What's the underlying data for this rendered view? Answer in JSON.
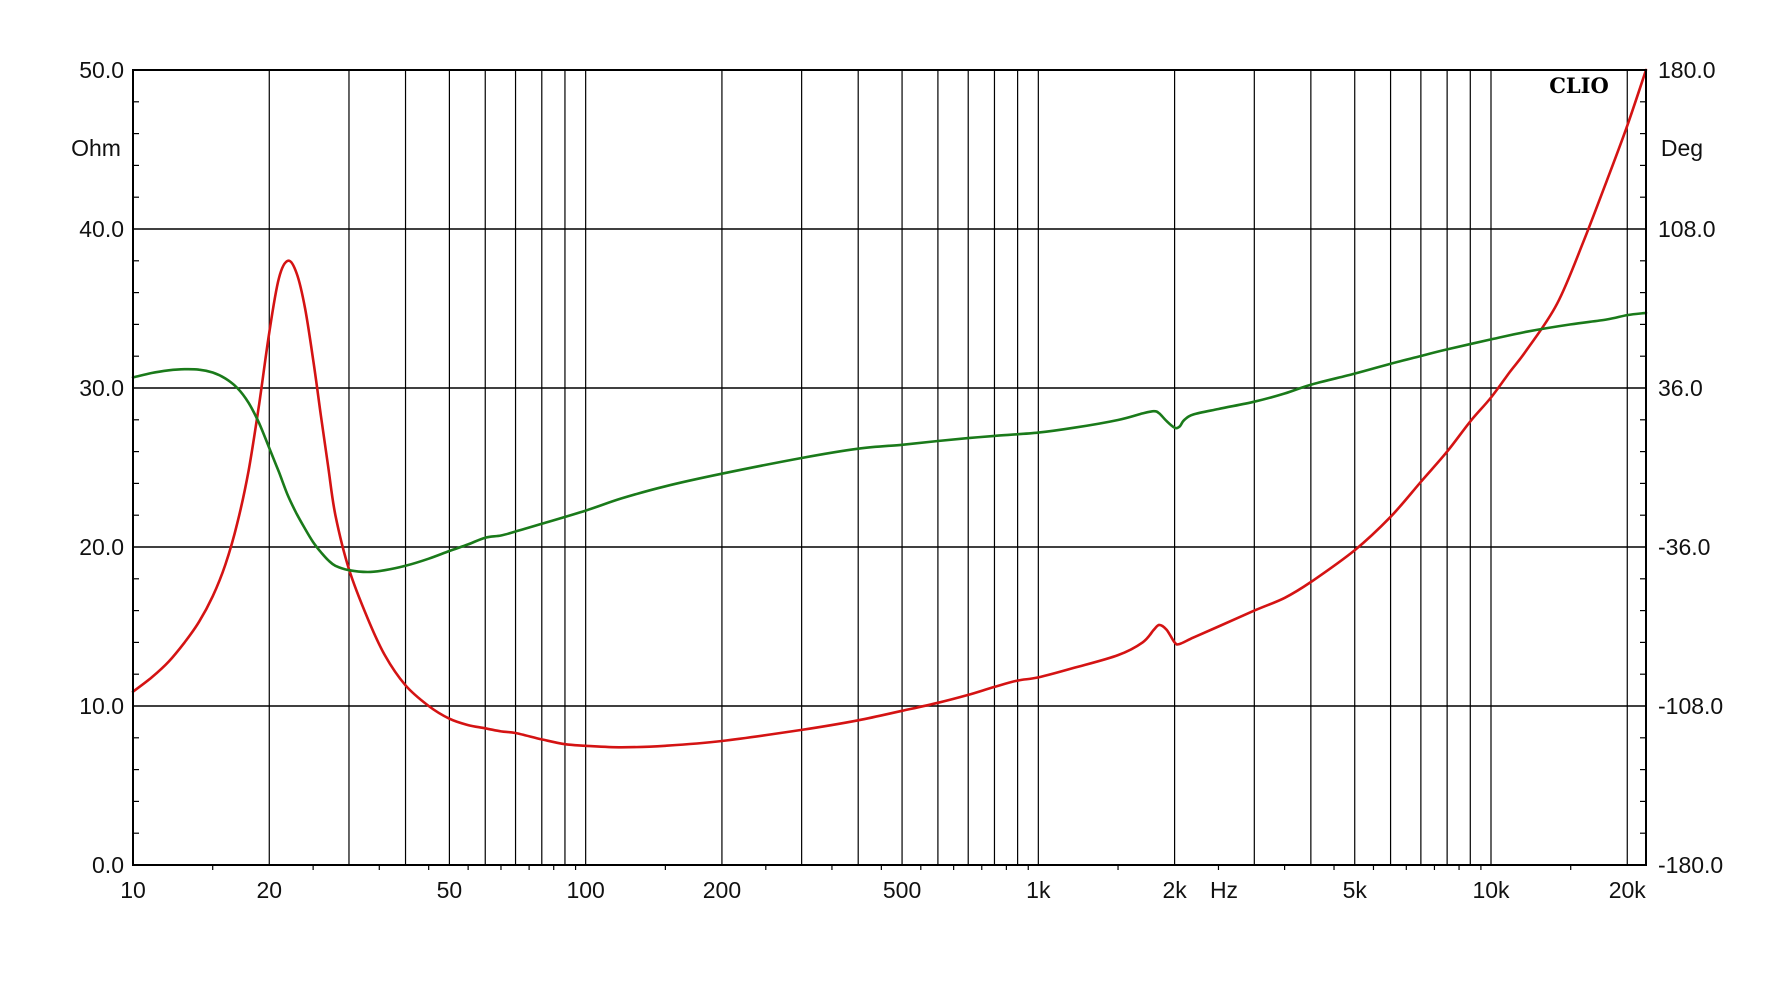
{
  "chart_data": {
    "type": "line",
    "title": "",
    "brand": "CLIO",
    "x_unit": "Hz",
    "y_left_unit": "Ohm",
    "y_right_unit": "Deg",
    "x_scale": "log",
    "xlim": [
      10,
      22000
    ],
    "ylim_left": [
      0,
      50
    ],
    "ylim_right": [
      -180,
      180
    ],
    "grid": true,
    "x_ticks": [
      {
        "value": 10,
        "label": "10"
      },
      {
        "value": 20,
        "label": "20"
      },
      {
        "value": 50,
        "label": "50"
      },
      {
        "value": 100,
        "label": "100"
      },
      {
        "value": 200,
        "label": "200"
      },
      {
        "value": 500,
        "label": "500"
      },
      {
        "value": 1000,
        "label": "1k"
      },
      {
        "value": 2000,
        "label": "2k"
      },
      {
        "value": 5000,
        "label": "5k"
      },
      {
        "value": 10000,
        "label": "10k"
      },
      {
        "value": 20000,
        "label": "20k"
      }
    ],
    "y_left_ticks": [
      {
        "value": 0,
        "label": "0.0"
      },
      {
        "value": 10,
        "label": "10.0"
      },
      {
        "value": 20,
        "label": "20.0"
      },
      {
        "value": 30,
        "label": "30.0"
      },
      {
        "value": 40,
        "label": "40.0"
      },
      {
        "value": 50,
        "label": "50.0"
      }
    ],
    "y_right_ticks": [
      {
        "value": -180,
        "label": "-180.0"
      },
      {
        "value": -108,
        "label": "-108.0"
      },
      {
        "value": -36,
        "label": "-36.0"
      },
      {
        "value": 36,
        "label": "36.0"
      },
      {
        "value": 108,
        "label": "108.0"
      },
      {
        "value": 180,
        "label": "180.0"
      }
    ],
    "series": [
      {
        "axis": "left",
        "color": "#d41313",
        "points": [
          [
            10,
            10.9
          ],
          [
            11,
            11.8
          ],
          [
            12,
            12.8
          ],
          [
            13,
            14.0
          ],
          [
            14,
            15.3
          ],
          [
            15,
            16.9
          ],
          [
            16,
            18.9
          ],
          [
            17,
            21.5
          ],
          [
            18,
            24.8
          ],
          [
            19,
            29.0
          ],
          [
            20,
            33.5
          ],
          [
            21,
            36.9
          ],
          [
            22,
            38.0
          ],
          [
            23,
            37.2
          ],
          [
            24,
            35.0
          ],
          [
            25,
            31.8
          ],
          [
            26,
            28.3
          ],
          [
            27,
            25.0
          ],
          [
            28,
            22.0
          ],
          [
            30,
            18.6
          ],
          [
            33,
            15.5
          ],
          [
            36,
            13.2
          ],
          [
            40,
            11.3
          ],
          [
            45,
            10.0
          ],
          [
            50,
            9.2
          ],
          [
            55,
            8.8
          ],
          [
            60,
            8.6
          ],
          [
            65,
            8.4
          ],
          [
            70,
            8.3
          ],
          [
            80,
            7.9
          ],
          [
            90,
            7.6
          ],
          [
            100,
            7.5
          ],
          [
            120,
            7.4
          ],
          [
            150,
            7.5
          ],
          [
            200,
            7.8
          ],
          [
            300,
            8.5
          ],
          [
            400,
            9.1
          ],
          [
            500,
            9.7
          ],
          [
            600,
            10.2
          ],
          [
            700,
            10.7
          ],
          [
            800,
            11.2
          ],
          [
            900,
            11.6
          ],
          [
            1000,
            11.8
          ],
          [
            1200,
            12.4
          ],
          [
            1500,
            13.2
          ],
          [
            1700,
            14.0
          ],
          [
            1800,
            14.8
          ],
          [
            1850,
            15.1
          ],
          [
            1920,
            14.8
          ],
          [
            2000,
            14.0
          ],
          [
            2050,
            13.9
          ],
          [
            2200,
            14.3
          ],
          [
            2500,
            15.0
          ],
          [
            3000,
            16.0
          ],
          [
            3500,
            16.8
          ],
          [
            4000,
            17.8
          ],
          [
            5000,
            19.8
          ],
          [
            6000,
            21.9
          ],
          [
            7000,
            24.1
          ],
          [
            8000,
            26.0
          ],
          [
            9000,
            27.9
          ],
          [
            10000,
            29.4
          ],
          [
            11000,
            31.0
          ],
          [
            12000,
            32.4
          ],
          [
            14000,
            35.3
          ],
          [
            16000,
            39.2
          ],
          [
            18000,
            43.0
          ],
          [
            20000,
            46.5
          ],
          [
            22000,
            50.0
          ]
        ]
      },
      {
        "axis": "right",
        "color": "#1a7a1a",
        "points": [
          [
            10,
            40.8
          ],
          [
            11,
            42.8
          ],
          [
            12,
            44.0
          ],
          [
            13,
            44.5
          ],
          [
            14,
            44.3
          ],
          [
            15,
            43.0
          ],
          [
            16,
            40.3
          ],
          [
            17,
            36.0
          ],
          [
            18,
            29.3
          ],
          [
            19,
            20.0
          ],
          [
            20,
            8.8
          ],
          [
            21,
            -2.0
          ],
          [
            22,
            -12.8
          ],
          [
            23,
            -21.0
          ],
          [
            24,
            -27.8
          ],
          [
            25,
            -33.8
          ],
          [
            26,
            -38.3
          ],
          [
            27,
            -42.0
          ],
          [
            28,
            -44.5
          ],
          [
            30,
            -46.5
          ],
          [
            33,
            -47.3
          ],
          [
            36,
            -46.5
          ],
          [
            40,
            -44.5
          ],
          [
            45,
            -41.3
          ],
          [
            50,
            -37.8
          ],
          [
            55,
            -34.8
          ],
          [
            60,
            -31.8
          ],
          [
            65,
            -30.8
          ],
          [
            70,
            -29.0
          ],
          [
            80,
            -25.5
          ],
          [
            100,
            -19.5
          ],
          [
            120,
            -14.0
          ],
          [
            150,
            -8.5
          ],
          [
            200,
            -2.8
          ],
          [
            300,
            4.3
          ],
          [
            400,
            8.5
          ],
          [
            500,
            10.3
          ],
          [
            600,
            12.0
          ],
          [
            700,
            13.3
          ],
          [
            800,
            14.3
          ],
          [
            1000,
            15.8
          ],
          [
            1200,
            18.0
          ],
          [
            1500,
            21.5
          ],
          [
            1700,
            24.5
          ],
          [
            1800,
            25.5
          ],
          [
            1850,
            24.5
          ],
          [
            1920,
            21.0
          ],
          [
            2000,
            18.0
          ],
          [
            2050,
            18.5
          ],
          [
            2100,
            21.5
          ],
          [
            2200,
            24.0
          ],
          [
            2500,
            26.5
          ],
          [
            3000,
            29.8
          ],
          [
            3500,
            33.5
          ],
          [
            4000,
            37.5
          ],
          [
            5000,
            42.5
          ],
          [
            6000,
            47.0
          ],
          [
            7000,
            50.5
          ],
          [
            8000,
            53.5
          ],
          [
            10000,
            58.0
          ],
          [
            12000,
            61.5
          ],
          [
            15000,
            64.8
          ],
          [
            18000,
            67.0
          ],
          [
            20000,
            69.0
          ],
          [
            22000,
            70.0
          ]
        ]
      }
    ]
  }
}
